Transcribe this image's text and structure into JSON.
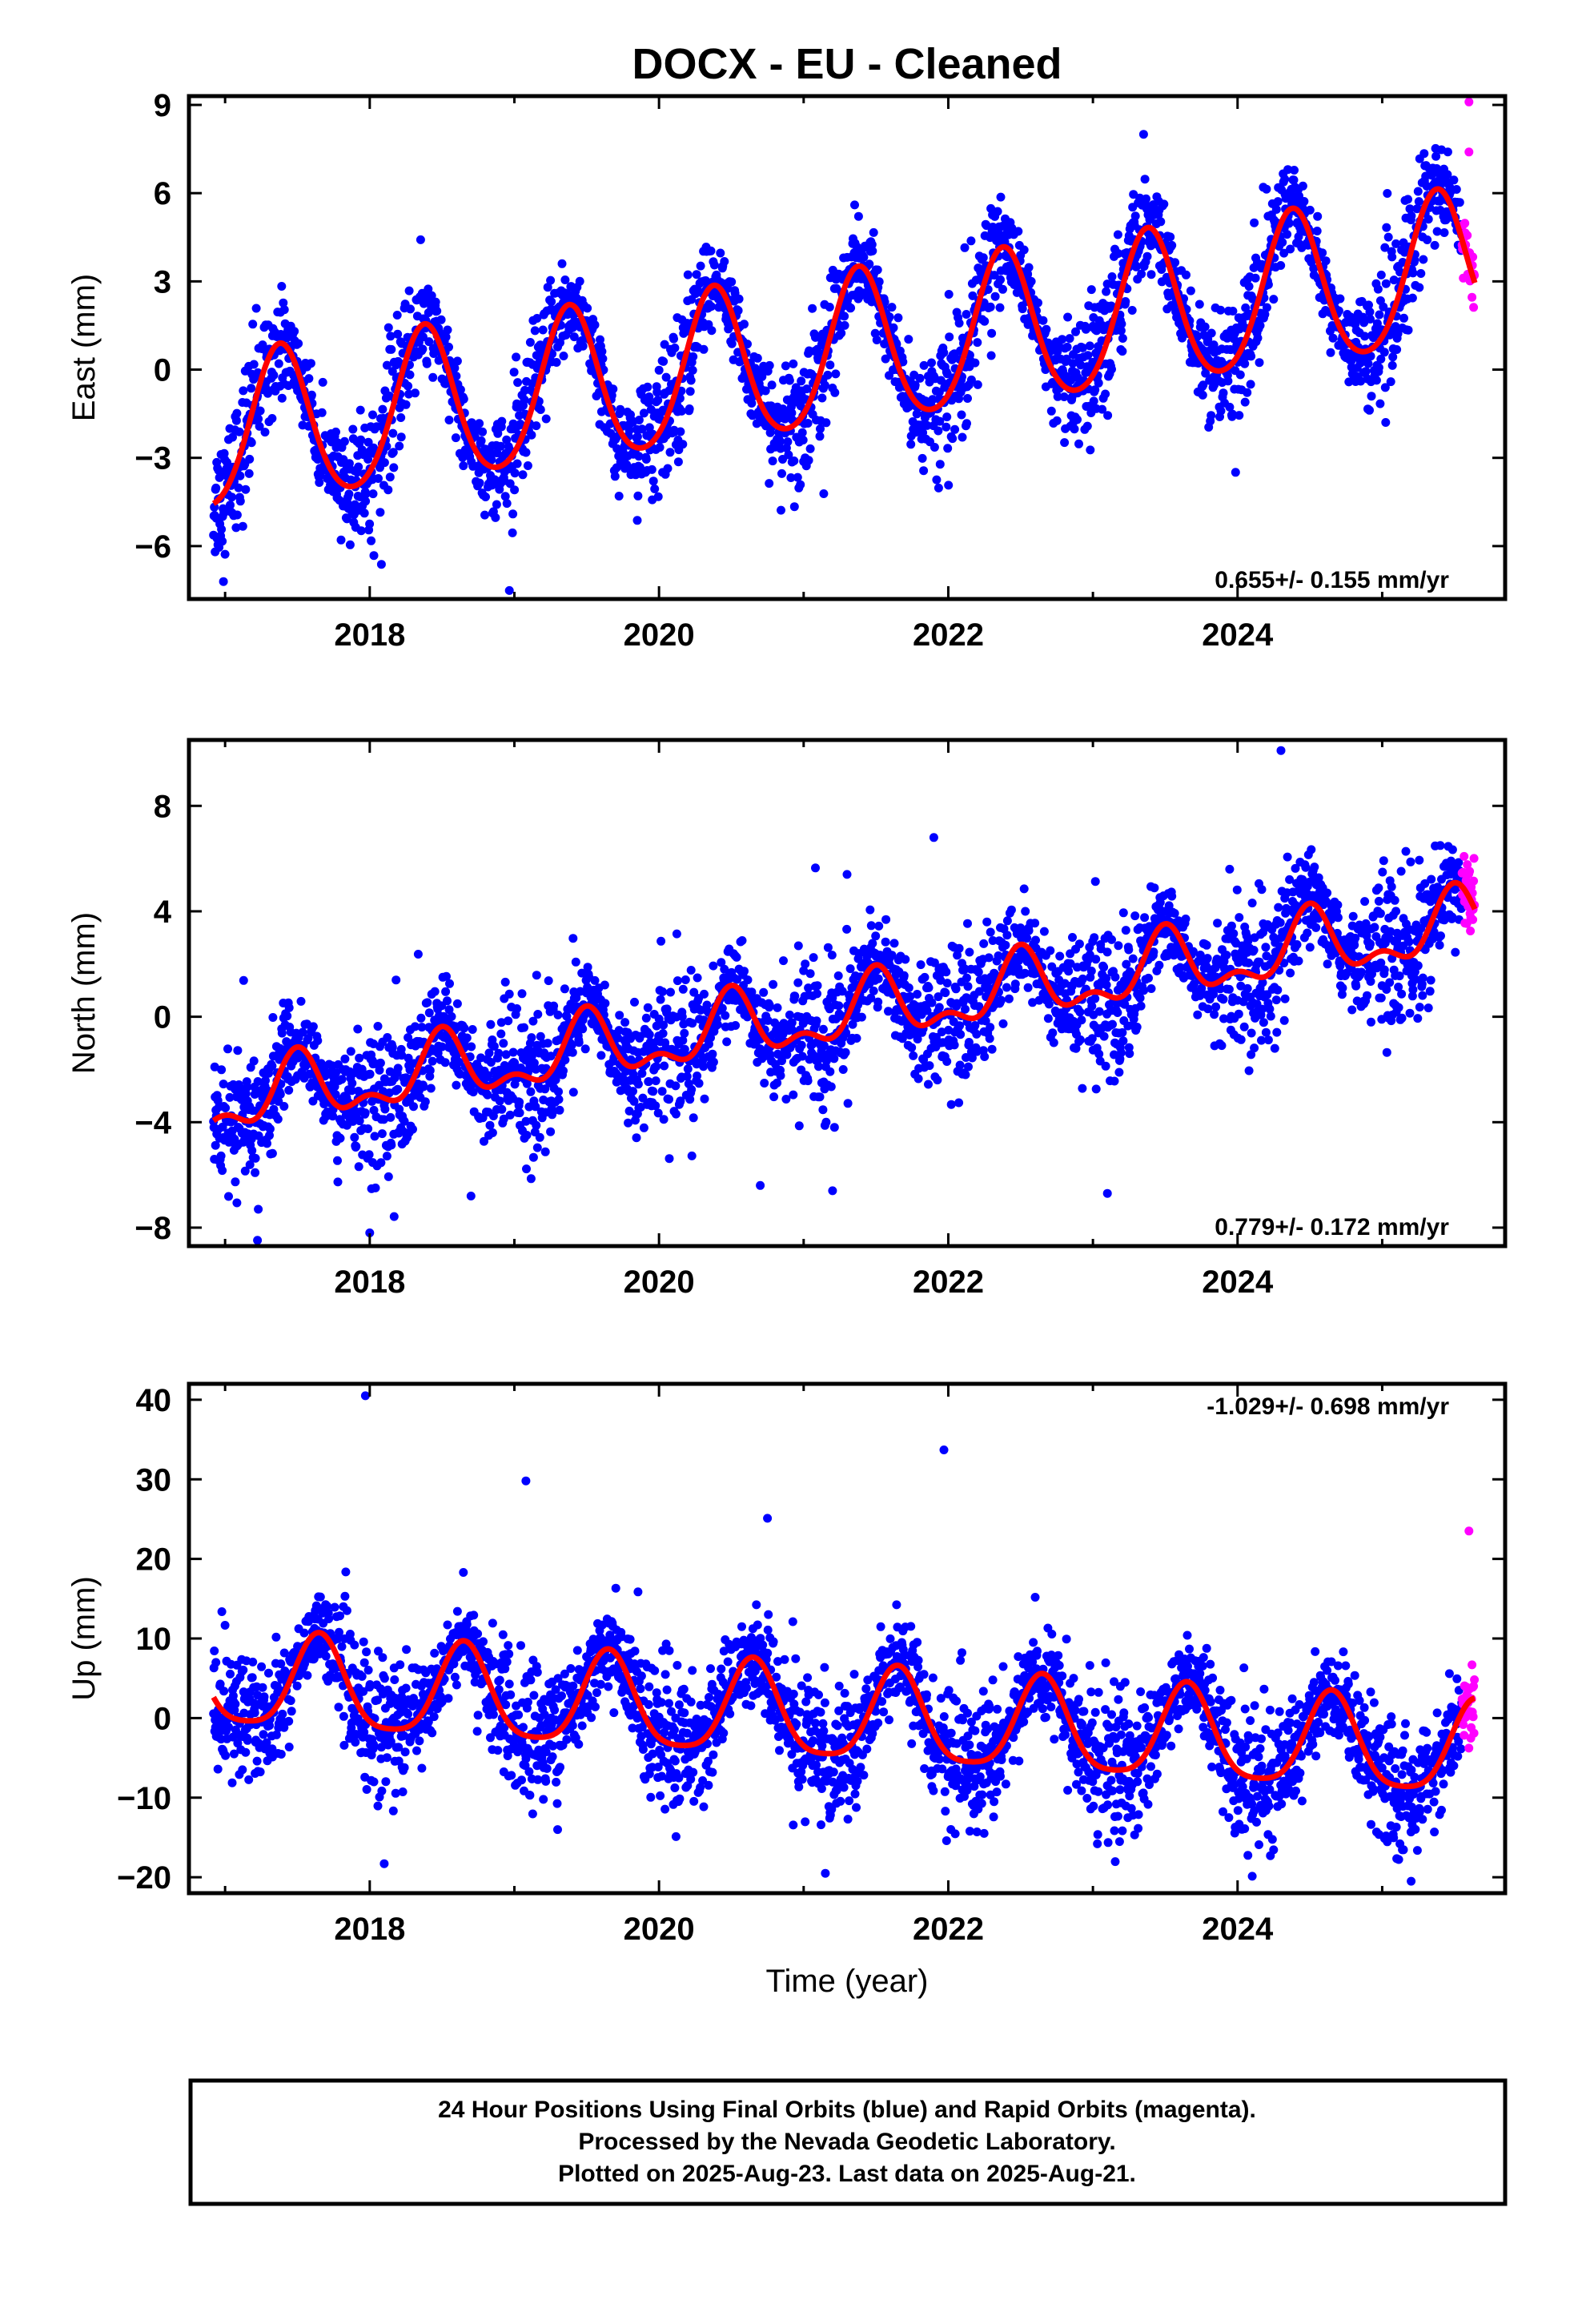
{
  "title": "DOCX  - EU - Cleaned",
  "xlabel": "Time (year)",
  "colors": {
    "final": "#0000ff",
    "rapid": "#ff00ff",
    "model": "#ff0000"
  },
  "footer": {
    "line1": "24 Hour Positions Using Final Orbits (blue) and Rapid Orbits (magenta).",
    "line2": "Processed by the Nevada Geodetic Laboratory.",
    "line3": "Plotted on 2025-Aug-23. Last data on 2025-Aug-21."
  },
  "chart_data": [
    {
      "type": "scatter",
      "component": "east",
      "ylabel": "East (mm)",
      "xlim": [
        2016.75,
        2025.85
      ],
      "ylim": [
        -7.8,
        9.3
      ],
      "x_ticks": [
        2018,
        2020,
        2022,
        2024
      ],
      "x_tick_labels": [
        "2018",
        "2020",
        "2022",
        "2024"
      ],
      "y_ticks": [
        -6,
        -3,
        0,
        3,
        6,
        9
      ],
      "y_tick_labels": [
        "−6",
        "−3",
        "0",
        "3",
        "6",
        "9"
      ],
      "rate_label": "0.655+/- 0.155 mm/yr",
      "rate_position": "bottom-right",
      "data_start": 2016.92,
      "rapid_start": 2025.55,
      "data_end": 2025.64,
      "model": {
        "offset": -2.3,
        "trend": 0.655,
        "annual_amp": 2.6,
        "annual_phase_year": 2017.38,
        "semiannual_amp": 0.3
      },
      "noise_sd": 0.9,
      "outliers": [
        [
          2023.35,
          8.0
        ],
        [
          2025.6,
          9.1
        ],
        [
          2025.6,
          7.4
        ]
      ]
    },
    {
      "type": "scatter",
      "component": "north",
      "ylabel": "North (mm)",
      "xlim": [
        2016.75,
        2025.85
      ],
      "ylim": [
        -8.7,
        10.5
      ],
      "x_ticks": [
        2018,
        2020,
        2022,
        2024
      ],
      "x_tick_labels": [
        "2018",
        "2020",
        "2022",
        "2024"
      ],
      "y_ticks": [
        -8,
        -4,
        0,
        4,
        8
      ],
      "y_tick_labels": [
        "−8",
        "−4",
        "0",
        "4",
        "8"
      ],
      "rate_label": "0.779+/- 0.172 mm/yr",
      "rate_position": "bottom-right",
      "data_start": 2016.92,
      "rapid_start": 2025.55,
      "data_end": 2025.64,
      "model": {
        "offset": -3.3,
        "trend": 0.779,
        "annual_amp": 1.1,
        "annual_phase_year": 2017.5,
        "semiannual_amp": 0.6
      },
      "noise_sd": 1.1,
      "outliers": [
        [
          2024.3,
          10.1
        ],
        [
          2021.9,
          6.8
        ],
        [
          2021.3,
          5.4
        ],
        [
          2018.0,
          -8.2
        ],
        [
          2020.7,
          -6.4
        ],
        [
          2021.2,
          -6.6
        ],
        [
          2023.1,
          -6.7
        ],
        [
          2018.7,
          -6.8
        ]
      ]
    },
    {
      "type": "scatter",
      "component": "up",
      "ylabel": "Up (mm)",
      "xlim": [
        2016.75,
        2025.85
      ],
      "ylim": [
        -22,
        42
      ],
      "x_ticks": [
        2018,
        2020,
        2022,
        2024
      ],
      "x_tick_labels": [
        "2018",
        "2020",
        "2022",
        "2024"
      ],
      "y_ticks": [
        -20,
        -10,
        0,
        10,
        20,
        30,
        40
      ],
      "y_tick_labels": [
        "−20",
        "−10",
        "0",
        "10",
        "20",
        "30",
        "40"
      ],
      "rate_label": "-1.029+/- 0.698 mm/yr",
      "rate_position": "top-right",
      "data_start": 2016.92,
      "rapid_start": 2025.55,
      "data_end": 2025.64,
      "model": {
        "offset": 4.5,
        "trend": -1.029,
        "annual_amp": 5.8,
        "annual_phase_year": 2017.65,
        "semiannual_amp": 1.2
      },
      "noise_sd": 3.6,
      "outliers": [
        [
          2017.97,
          40.5
        ],
        [
          2019.08,
          29.8
        ],
        [
          2021.97,
          33.7
        ],
        [
          2020.75,
          25.1
        ],
        [
          2025.6,
          23.5
        ],
        [
          2018.1,
          -18.3
        ],
        [
          2021.15,
          -19.5
        ],
        [
          2025.2,
          -20.5
        ]
      ]
    }
  ]
}
